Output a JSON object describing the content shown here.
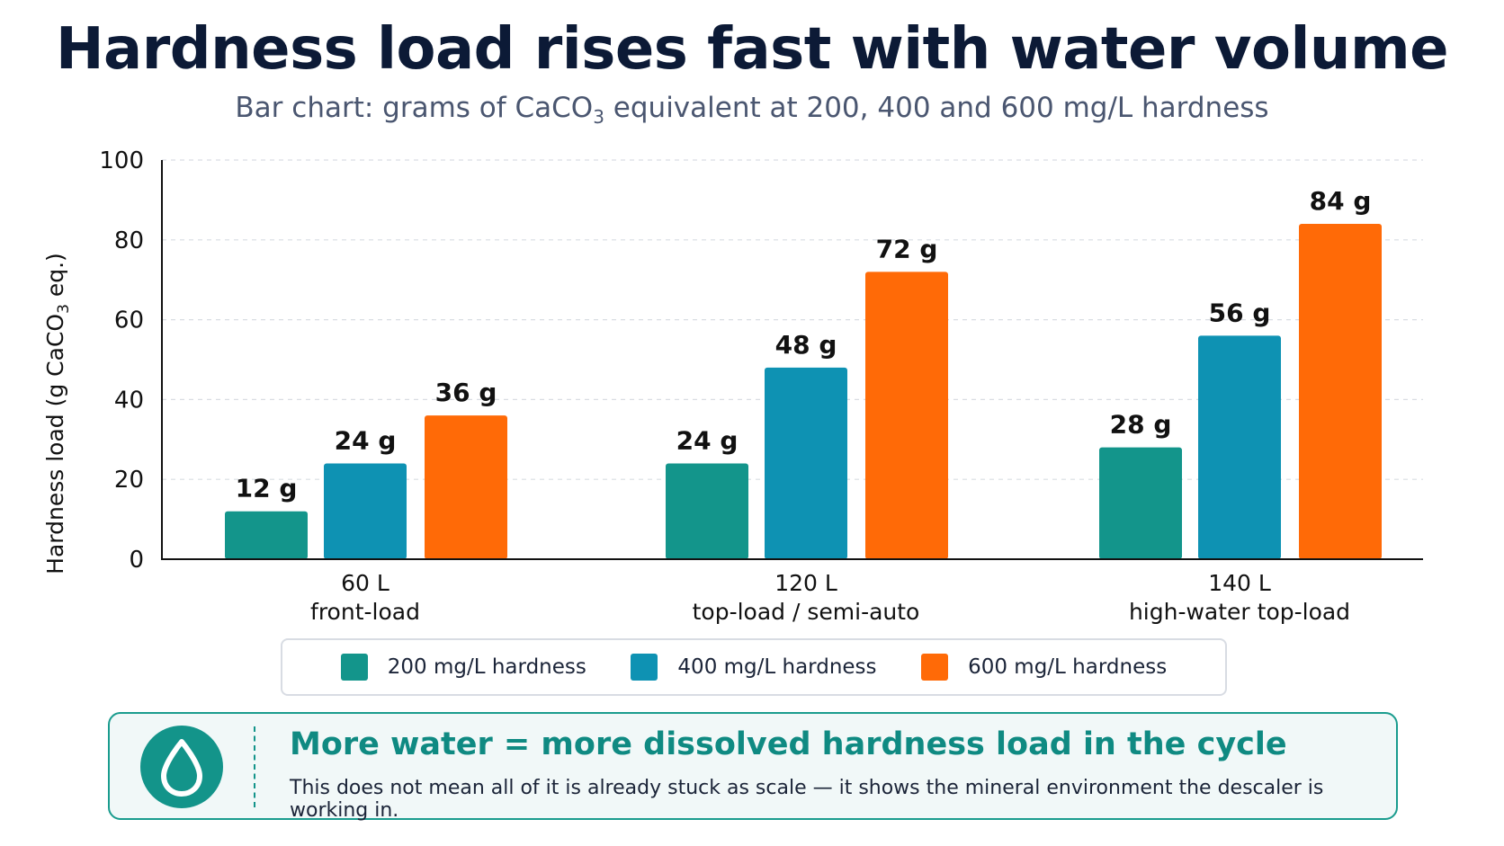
{
  "header": {
    "title": "Hardness load rises fast with water volume",
    "subtitle_prefix": "Bar chart: grams of CaCO",
    "subtitle_sub": "3",
    "subtitle_suffix": " equivalent at 200, 400 and 600 mg/L hardness"
  },
  "chart_data": {
    "type": "bar",
    "ylabel_prefix": "Hardness load (g CaCO",
    "ylabel_sub": "3",
    "ylabel_suffix": " eq.)",
    "ylim": [
      0,
      100
    ],
    "yticks": [
      0,
      20,
      40,
      60,
      80,
      100
    ],
    "grid": true,
    "categories": [
      {
        "line1": "60 L",
        "line2": "front-load"
      },
      {
        "line1": "120 L",
        "line2": "top-load / semi-auto"
      },
      {
        "line1": "140 L",
        "line2": "high-water top-load"
      }
    ],
    "series": [
      {
        "name": "200 mg/L hardness",
        "color": "#13958b",
        "values": [
          12,
          24,
          28
        ],
        "labels": [
          "12 g",
          "24 g",
          "28 g"
        ]
      },
      {
        "name": "400 mg/L hardness",
        "color": "#0e92b3",
        "values": [
          24,
          48,
          56
        ],
        "labels": [
          "24 g",
          "48 g",
          "56 g"
        ]
      },
      {
        "name": "600 mg/L hardness",
        "color": "#ff6a07",
        "values": [
          36,
          72,
          84
        ],
        "labels": [
          "36 g",
          "72 g",
          "84 g"
        ]
      }
    ],
    "legend_position": "bottom"
  },
  "callout": {
    "icon": "water-drop-icon",
    "title": "More water = more dissolved hardness load in the cycle",
    "body": "This does not mean all of it is already stuck as scale — it shows the mineral environment the descaler is working in."
  }
}
